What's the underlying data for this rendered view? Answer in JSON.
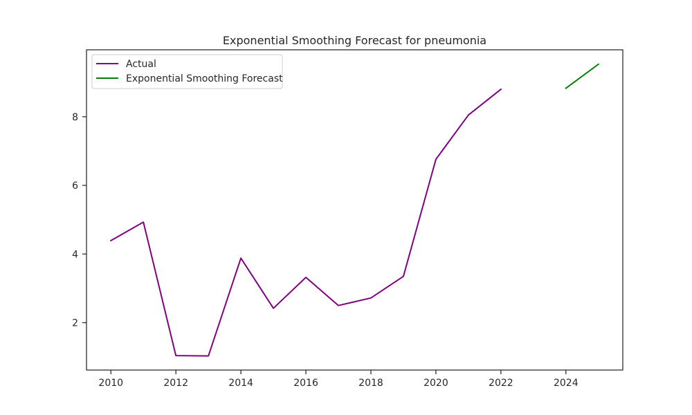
{
  "chart_data": {
    "type": "line",
    "title": "Exponential Smoothing Forecast for pneumonia",
    "xlabel": "",
    "ylabel": "",
    "xlim": [
      2009.25,
      2025.75
    ],
    "ylim": [
      0.62,
      9.95
    ],
    "x_ticks": [
      2010,
      2012,
      2014,
      2016,
      2018,
      2020,
      2022,
      2024
    ],
    "y_ticks": [
      2,
      4,
      6,
      8
    ],
    "grid": false,
    "legend_position": "top-left",
    "series": [
      {
        "name": "Actual",
        "color": "#800080",
        "x": [
          2010,
          2011,
          2012,
          2013,
          2014,
          2015,
          2016,
          2017,
          2018,
          2019,
          2020,
          2021,
          2022
        ],
        "y": [
          4.39,
          4.93,
          1.04,
          1.03,
          3.88,
          2.42,
          3.32,
          2.5,
          2.72,
          3.35,
          6.76,
          8.05,
          8.8
        ]
      },
      {
        "name": "Exponential Smoothing Forecast",
        "color": "#008000",
        "x": [
          2024,
          2025
        ],
        "y": [
          8.83,
          9.53
        ]
      }
    ]
  }
}
